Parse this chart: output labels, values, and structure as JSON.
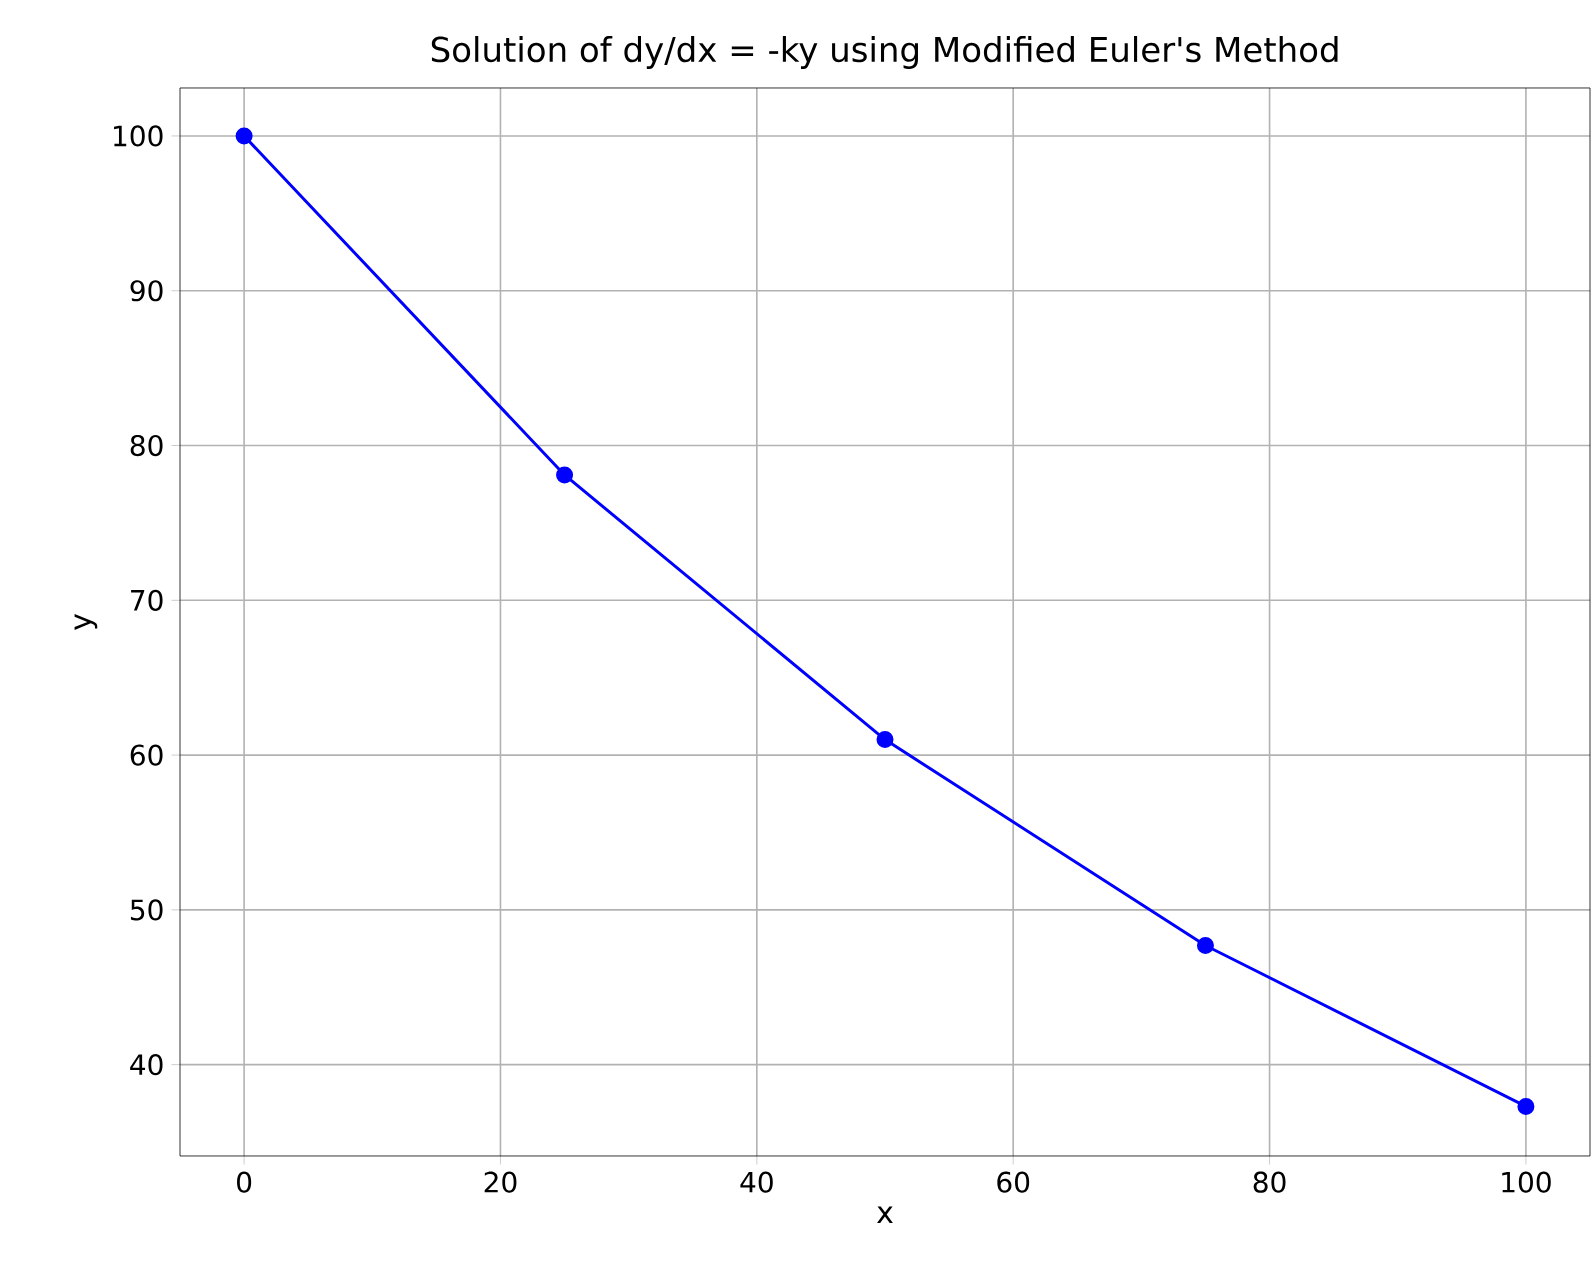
{
  "chart_data": {
    "type": "line",
    "title": "Solution of dy/dx = -ky using Modified Euler's Method",
    "xlabel": "x",
    "ylabel": "y",
    "x": [
      0,
      25,
      50,
      75,
      100
    ],
    "series": [
      {
        "color": "#0000ff",
        "values": [
          100,
          78.1,
          61.0,
          47.7,
          37.3
        ]
      }
    ],
    "xlim": [
      -5,
      105
    ],
    "ylim": [
      34.1,
      103.1
    ],
    "xticks": [
      0,
      20,
      40,
      60,
      80,
      100
    ],
    "yticks": [
      40,
      50,
      60,
      70,
      80,
      90,
      100
    ],
    "grid": true,
    "marker": "circle",
    "line_style": "solid"
  }
}
